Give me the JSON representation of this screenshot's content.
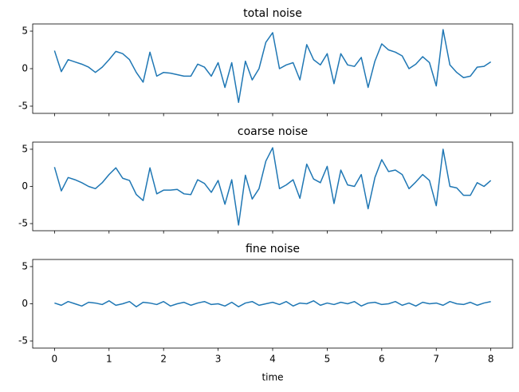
{
  "chart_data": [
    {
      "type": "line",
      "title": "total noise",
      "x": [
        0,
        0.125,
        0.25,
        0.375,
        0.5,
        0.625,
        0.75,
        0.875,
        1,
        1.125,
        1.25,
        1.375,
        1.5,
        1.625,
        1.75,
        1.875,
        2,
        2.125,
        2.25,
        2.375,
        2.5,
        2.625,
        2.75,
        2.875,
        3,
        3.125,
        3.25,
        3.375,
        3.5,
        3.625,
        3.75,
        3.875,
        4,
        4.125,
        4.25,
        4.375,
        4.5,
        4.625,
        4.75,
        4.875,
        5,
        5.125,
        5.25,
        5.375,
        5.5,
        5.625,
        5.75,
        5.875,
        6,
        6.125,
        6.25,
        6.375,
        6.5,
        6.625,
        6.75,
        6.875,
        7,
        7.125,
        7.25,
        7.375,
        7.5,
        7.625,
        7.75,
        7.875,
        8
      ],
      "series": [
        {
          "color": "#1f77b4",
          "values": [
            2.4,
            -0.4,
            1.2,
            0.9,
            0.6,
            0.2,
            -0.5,
            0.2,
            1.2,
            2.3,
            2.0,
            1.2,
            -0.5,
            -1.8,
            2.2,
            -1.0,
            -0.5,
            -0.6,
            -0.8,
            -1.0,
            -1.0,
            0.6,
            0.2,
            -1.0,
            0.8,
            -2.5,
            0.8,
            -4.5,
            1.0,
            -1.5,
            0.0,
            3.5,
            4.8,
            0.0,
            0.5,
            0.8,
            -1.5,
            3.2,
            1.2,
            0.5,
            2.0,
            -2.0,
            2.0,
            0.5,
            0.3,
            1.5,
            -2.5,
            1.0,
            3.3,
            2.5,
            2.2,
            1.7,
            0.0,
            0.6,
            1.6,
            0.8,
            -2.3,
            5.2,
            0.5,
            -0.5,
            -1.2,
            -1.0,
            0.2,
            0.3,
            0.9
          ]
        }
      ],
      "xlim": [
        -0.4,
        8.4
      ],
      "ylim": [
        -5.96,
        5.96
      ],
      "xticks": [
        0,
        1,
        2,
        3,
        4,
        5,
        6,
        7,
        8
      ],
      "yticks": [
        -5,
        0,
        5
      ]
    },
    {
      "type": "line",
      "title": "coarse noise",
      "x": [
        0,
        0.125,
        0.25,
        0.375,
        0.5,
        0.625,
        0.75,
        0.875,
        1,
        1.125,
        1.25,
        1.375,
        1.5,
        1.625,
        1.75,
        1.875,
        2,
        2.125,
        2.25,
        2.375,
        2.5,
        2.625,
        2.75,
        2.875,
        3,
        3.125,
        3.25,
        3.375,
        3.5,
        3.625,
        3.75,
        3.875,
        4,
        4.125,
        4.25,
        4.375,
        4.5,
        4.625,
        4.75,
        4.875,
        5,
        5.125,
        5.25,
        5.375,
        5.5,
        5.625,
        5.75,
        5.875,
        6,
        6.125,
        6.25,
        6.375,
        6.5,
        6.625,
        6.75,
        6.875,
        7,
        7.125,
        7.25,
        7.375,
        7.5,
        7.625,
        7.75,
        7.875,
        8
      ],
      "series": [
        {
          "color": "#1f77b4",
          "values": [
            2.6,
            -0.6,
            1.2,
            0.9,
            0.5,
            0.0,
            -0.3,
            0.5,
            1.6,
            2.5,
            1.1,
            0.8,
            -1.1,
            -1.9,
            2.5,
            -1.0,
            -0.5,
            -0.5,
            -0.4,
            -1.0,
            -1.1,
            0.9,
            0.4,
            -0.8,
            0.8,
            -2.4,
            0.9,
            -5.2,
            1.5,
            -1.7,
            -0.3,
            3.4,
            5.2,
            -0.3,
            0.2,
            0.9,
            -1.6,
            3.0,
            1.0,
            0.5,
            2.7,
            -2.3,
            2.2,
            0.2,
            0.0,
            1.6,
            -3.0,
            1.2,
            3.6,
            2.0,
            2.2,
            1.6,
            -0.3,
            0.6,
            1.6,
            0.8,
            -2.6,
            5.0,
            0.0,
            -0.2,
            -1.2,
            -1.2,
            0.5,
            0.0,
            0.8
          ]
        }
      ],
      "xlim": [
        -0.4,
        8.4
      ],
      "ylim": [
        -5.96,
        5.96
      ],
      "xticks": [
        0,
        1,
        2,
        3,
        4,
        5,
        6,
        7,
        8
      ],
      "yticks": [
        -5,
        0,
        5
      ]
    },
    {
      "type": "line",
      "title": "fine noise",
      "xlabel": "time",
      "x": [
        0,
        0.125,
        0.25,
        0.375,
        0.5,
        0.625,
        0.75,
        0.875,
        1,
        1.125,
        1.25,
        1.375,
        1.5,
        1.625,
        1.75,
        1.875,
        2,
        2.125,
        2.25,
        2.375,
        2.5,
        2.625,
        2.75,
        2.875,
        3,
        3.125,
        3.25,
        3.375,
        3.5,
        3.625,
        3.75,
        3.875,
        4,
        4.125,
        4.25,
        4.375,
        4.5,
        4.625,
        4.75,
        4.875,
        5,
        5.125,
        5.25,
        5.375,
        5.5,
        5.625,
        5.75,
        5.875,
        6,
        6.125,
        6.25,
        6.375,
        6.5,
        6.625,
        6.75,
        6.875,
        7,
        7.125,
        7.25,
        7.375,
        7.5,
        7.625,
        7.75,
        7.875,
        8
      ],
      "series": [
        {
          "color": "#1f77b4",
          "values": [
            0.1,
            -0.2,
            0.3,
            0.0,
            -0.3,
            0.2,
            0.1,
            -0.1,
            0.4,
            -0.2,
            0.0,
            0.3,
            -0.4,
            0.2,
            0.1,
            -0.1,
            0.3,
            -0.3,
            0.0,
            0.2,
            -0.2,
            0.1,
            0.3,
            -0.1,
            0.0,
            -0.3,
            0.2,
            -0.4,
            0.1,
            0.3,
            -0.2,
            0.0,
            0.2,
            -0.1,
            0.3,
            -0.3,
            0.1,
            0.0,
            0.4,
            -0.2,
            0.1,
            -0.1,
            0.2,
            0.0,
            0.3,
            -0.3,
            0.1,
            0.2,
            -0.1,
            0.0,
            0.3,
            -0.2,
            0.1,
            -0.3,
            0.2,
            0.0,
            0.1,
            -0.2,
            0.3,
            0.0,
            -0.1,
            0.2,
            -0.2,
            0.1,
            0.3
          ]
        }
      ],
      "xlim": [
        -0.4,
        8.4
      ],
      "ylim": [
        -5.96,
        5.96
      ],
      "xticks": [
        0,
        1,
        2,
        3,
        4,
        5,
        6,
        7,
        8
      ],
      "yticks": [
        -5,
        0,
        5
      ]
    }
  ]
}
